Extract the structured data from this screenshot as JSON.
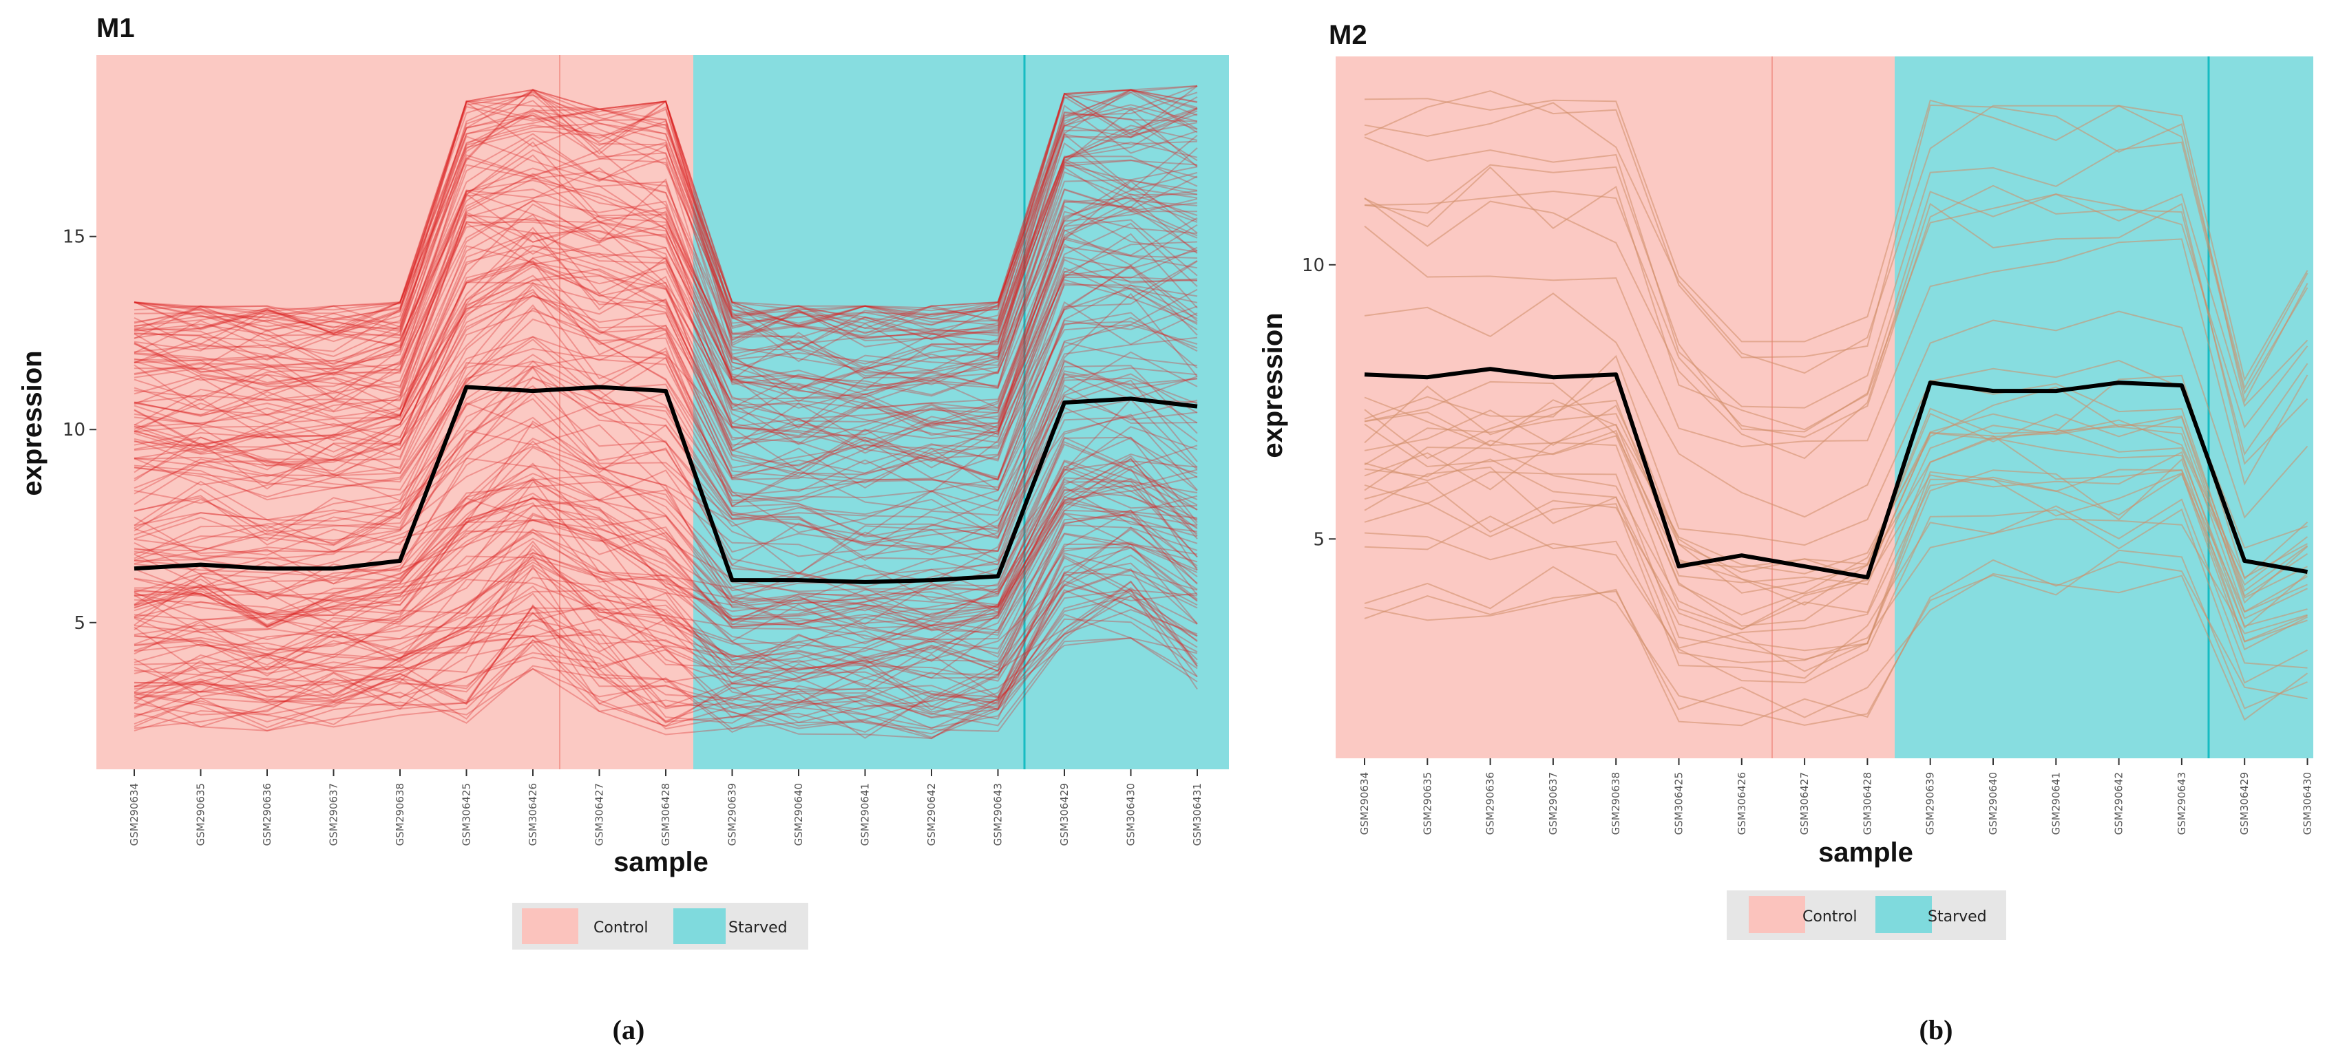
{
  "figure": {
    "caption_a": "(a)",
    "caption_b": "(b)"
  },
  "colors": {
    "control_bg": "#fbc9c3",
    "starved_bg": "#87dde0",
    "control_key": "#fbc3bd",
    "starved_key": "#7fdadd",
    "m1_lines": "#d91e1e",
    "m2_lines": "#d08c66",
    "mean_line": "#000000",
    "legend_box": "#e6e6e6"
  },
  "chart_data": [
    {
      "type": "line",
      "panel": "M1",
      "title": "M1",
      "xlabel": "sample",
      "ylabel": "expression",
      "ylim": [
        1.2,
        19.7
      ],
      "yticks": [
        5,
        10,
        15
      ],
      "categories": [
        "GSM290634",
        "GSM290635",
        "GSM290636",
        "GSM290637",
        "GSM290638",
        "GSM306425",
        "GSM306426",
        "GSM306427",
        "GSM306428",
        "GSM290639",
        "GSM290640",
        "GSM290641",
        "GSM290642",
        "GSM290643",
        "GSM306429",
        "GSM306430",
        "GSM306431"
      ],
      "groups": [
        {
          "name": "Control",
          "start": 0,
          "end": 8
        },
        {
          "name": "Starved",
          "start": 9,
          "end": 16
        }
      ],
      "series_count": 180,
      "series_note": "Individual gene expression profiles (red, semi-transparent); black = cluster mean",
      "mean": [
        6.4,
        6.5,
        6.4,
        6.4,
        6.6,
        11.1,
        11.0,
        11.1,
        11.0,
        6.1,
        6.1,
        6.05,
        6.1,
        6.2,
        10.7,
        10.8,
        10.6
      ],
      "range_low": [
        2.2,
        2.3,
        2.2,
        2.3,
        2.6,
        2.4,
        3.8,
        2.7,
        2.1,
        2.1,
        2.0,
        2.0,
        2.0,
        2.1,
        4.4,
        4.6,
        3.2
      ],
      "range_high": [
        13.3,
        13.2,
        13.2,
        13.2,
        13.3,
        18.5,
        18.8,
        18.3,
        18.5,
        13.3,
        13.2,
        13.2,
        13.2,
        13.3,
        18.7,
        18.8,
        18.9
      ],
      "legend": [
        "Control",
        "Starved"
      ]
    },
    {
      "type": "line",
      "panel": "M2",
      "title": "M2",
      "xlabel": "sample",
      "ylabel": "expression",
      "ylim": [
        1.0,
        13.8
      ],
      "yticks": [
        5,
        10
      ],
      "categories": [
        "GSM290634",
        "GSM290635",
        "GSM290636",
        "GSM290637",
        "GSM290638",
        "GSM306425",
        "GSM306426",
        "GSM306427",
        "GSM306428",
        "GSM290639",
        "GSM290640",
        "GSM290641",
        "GSM290642",
        "GSM290643",
        "GSM306429",
        "GSM306430"
      ],
      "groups": [
        {
          "name": "Control",
          "start": 0,
          "end": 8
        },
        {
          "name": "Starved",
          "start": 9,
          "end": 15
        }
      ],
      "series_count": 32,
      "series_note": "Individual gene expression profiles (orange-brown, semi-transparent); black = cluster mean",
      "mean": [
        8.0,
        7.95,
        8.1,
        7.95,
        8.0,
        4.5,
        4.7,
        4.5,
        4.3,
        7.85,
        7.7,
        7.7,
        7.85,
        7.8,
        4.6,
        4.4
      ],
      "range_low": [
        3.5,
        3.5,
        3.6,
        3.6,
        3.8,
        1.6,
        1.6,
        1.5,
        1.7,
        3.7,
        3.8,
        3.9,
        3.9,
        4.0,
        1.7,
        1.7
      ],
      "range_high": [
        13.2,
        13.1,
        13.2,
        13.0,
        13.0,
        9.8,
        8.6,
        8.6,
        9.1,
        13.0,
        12.9,
        12.9,
        12.9,
        13.0,
        8.2,
        10.1
      ],
      "legend": [
        "Control",
        "Starved"
      ]
    }
  ]
}
